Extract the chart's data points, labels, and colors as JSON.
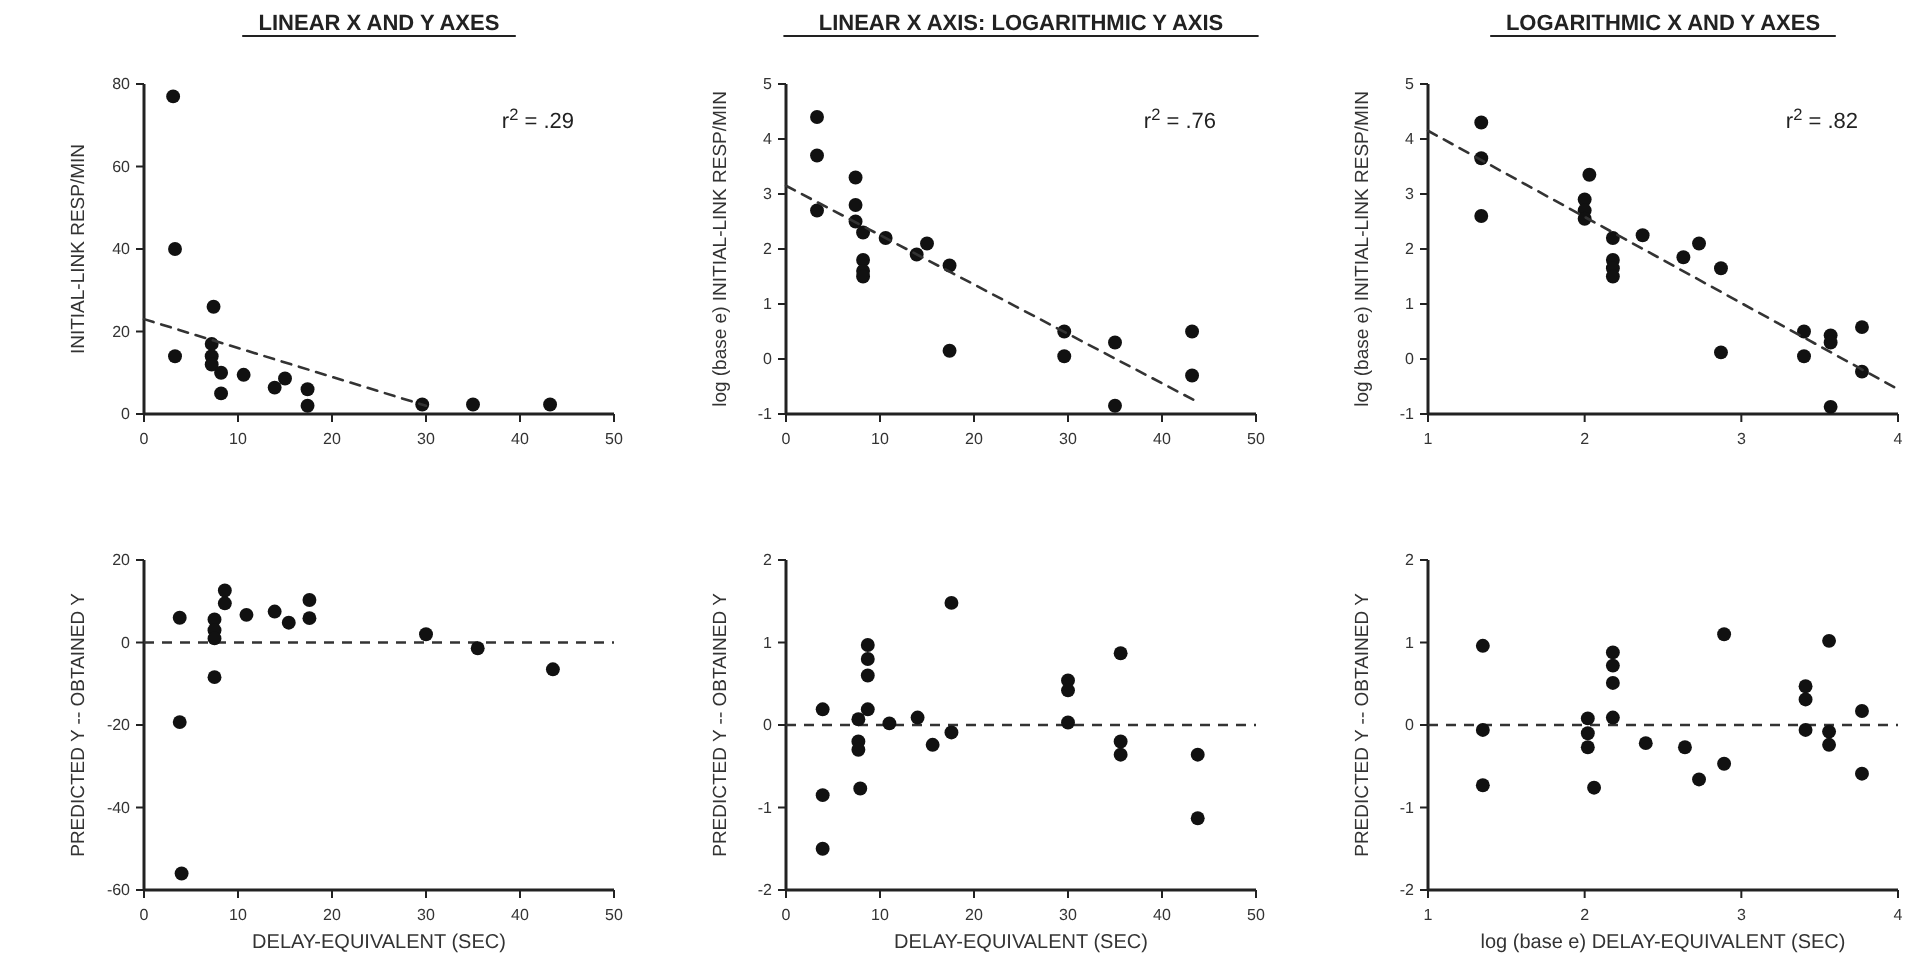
{
  "chart_data": [
    {
      "type": "scatter",
      "title": "LINEAR X AND Y AXES",
      "ylabel": "INITIAL-LINK RESP/MIN",
      "annotations": [
        "r$^{2}$ = .29"
      ],
      "xlim": [
        0,
        50
      ],
      "xticks": [
        0,
        10,
        20,
        30,
        40,
        50
      ],
      "ylim": [
        0,
        80
      ],
      "yticks": [
        0,
        20,
        40,
        60,
        80
      ],
      "marker": "circle",
      "series": [
        {
          "type": "scatter",
          "color": "#111111",
          "x": [
            3.1,
            3.3,
            3.3,
            7.4,
            7.2,
            7.2,
            7.2,
            8.2,
            8.2,
            10.6,
            13.9,
            15,
            17.4,
            17.4,
            29.6,
            35,
            43.2
          ],
          "values": [
            77,
            40,
            14,
            26,
            17,
            14,
            12,
            10,
            5,
            9.5,
            6.4,
            8.6,
            6,
            2,
            2.3,
            2.3,
            2.3
          ]
        },
        {
          "type": "line",
          "marker": "none",
          "color": "#333333",
          "line_style": "dashed",
          "x": [
            0,
            30
          ],
          "values": [
            23,
            2
          ]
        }
      ]
    },
    {
      "type": "scatter",
      "title": "LINEAR X AXIS: LOGARITHMIC Y AXIS",
      "ylabel": "log (base e) INITIAL-LINK RESP/MIN",
      "annotations": [
        "r$^{2}$ = .76"
      ],
      "xlim": [
        0,
        50
      ],
      "xticks": [
        0,
        10,
        20,
        30,
        40,
        50
      ],
      "ylim": [
        -1,
        5
      ],
      "yticks": [
        -1,
        0,
        1,
        2,
        3,
        4,
        5
      ],
      "marker": "circle",
      "series": [
        {
          "type": "scatter",
          "color": "#111111",
          "x": [
            3.3,
            3.3,
            3.3,
            7.4,
            7.4,
            7.4,
            8.2,
            8.2,
            8.2,
            8.2,
            10.6,
            13.9,
            15,
            17.4,
            17.4,
            29.6,
            29.6,
            35,
            35,
            43.2,
            43.2
          ],
          "values": [
            4.4,
            3.7,
            2.7,
            3.3,
            2.8,
            2.5,
            2.3,
            1.8,
            1.6,
            1.5,
            2.2,
            1.9,
            2.1,
            1.7,
            0.15,
            0.5,
            0.05,
            0.3,
            -0.85,
            0.5,
            -0.3
          ]
        },
        {
          "type": "line",
          "marker": "none",
          "color": "#333333",
          "line_style": "dashed",
          "x": [
            0,
            44
          ],
          "values": [
            3.15,
            -0.8
          ]
        }
      ]
    },
    {
      "type": "scatter",
      "title": "LOGARITHMIC X AND Y AXES",
      "ylabel": "log (base e) INITIAL-LINK RESP/MIN",
      "annotations": [
        "r$^{2}$ = .82"
      ],
      "xlim": [
        1,
        4
      ],
      "xticks": [
        1,
        2,
        3,
        4
      ],
      "ylim": [
        -1,
        5
      ],
      "yticks": [
        -1,
        0,
        1,
        2,
        3,
        4,
        5
      ],
      "marker": "circle",
      "series": [
        {
          "type": "scatter",
          "color": "#111111",
          "x": [
            1.34,
            1.34,
            1.34,
            2.03,
            2,
            2,
            2,
            2.18,
            2.18,
            2.18,
            2.18,
            2.37,
            2.63,
            2.73,
            2.87,
            2.87,
            3.4,
            3.4,
            3.57,
            3.57,
            3.57,
            3.77,
            3.77
          ],
          "values": [
            4.3,
            3.65,
            2.6,
            3.35,
            2.9,
            2.7,
            2.55,
            2.2,
            1.8,
            1.65,
            1.5,
            2.25,
            1.85,
            2.1,
            1.65,
            0.12,
            0.5,
            0.05,
            0.43,
            0.3,
            -0.87,
            0.58,
            -0.23
          ]
        },
        {
          "type": "line",
          "marker": "none",
          "color": "#333333",
          "line_style": "dashed",
          "x": [
            1,
            4
          ],
          "values": [
            4.15,
            -0.55
          ]
        }
      ]
    },
    {
      "type": "scatter",
      "xlabel": "DELAY-EQUIVALENT  (SEC)",
      "ylabel": "PREDICTED Y -- OBTAINED Y",
      "xlim": [
        0,
        50
      ],
      "xticks": [
        0,
        10,
        20,
        30,
        40,
        50
      ],
      "ylim": [
        -60,
        20
      ],
      "yticks": [
        -60,
        -40,
        -20,
        0,
        20
      ],
      "marker": "circle",
      "ref_lines": [
        {
          "axis": "y",
          "value": 0,
          "line_style": "dashed",
          "color": "#333333"
        }
      ],
      "series": [
        {
          "type": "scatter",
          "color": "#111111",
          "x": [
            3.8,
            3.8,
            4,
            7.5,
            7.5,
            7.5,
            7.5,
            8.6,
            8.6,
            10.9,
            13.9,
            15.4,
            17.6,
            17.6,
            30,
            35.5,
            43.5
          ],
          "values": [
            6,
            -19.3,
            -56,
            -8.4,
            5.6,
            3,
            1,
            12.6,
            9.5,
            6.7,
            7.5,
            4.8,
            10.3,
            5.9,
            2,
            -1.4,
            -6.5
          ]
        }
      ]
    },
    {
      "type": "scatter",
      "xlabel": "DELAY-EQUIVALENT  (SEC)",
      "ylabel": "PREDICTED Y -- OBTAINED Y",
      "xlim": [
        0,
        50
      ],
      "xticks": [
        0,
        10,
        20,
        30,
        40,
        50
      ],
      "ylim": [
        -2,
        2
      ],
      "yticks": [
        -2,
        -1,
        0,
        1,
        2
      ],
      "marker": "circle",
      "ref_lines": [
        {
          "axis": "y",
          "value": 0,
          "line_style": "dashed",
          "color": "#333333"
        }
      ],
      "series": [
        {
          "type": "scatter",
          "color": "#111111",
          "x": [
            3.9,
            3.9,
            3.9,
            7.7,
            7.7,
            7.7,
            7.9,
            8.7,
            8.7,
            8.7,
            8.7,
            11,
            14,
            15.6,
            17.6,
            17.6,
            30,
            30,
            30,
            35.6,
            35.6,
            35.6,
            43.8,
            43.8
          ],
          "values": [
            0.19,
            -0.85,
            -1.5,
            0.07,
            -0.2,
            -0.3,
            -0.77,
            0.97,
            0.8,
            0.6,
            0.19,
            0.02,
            0.09,
            -0.24,
            1.48,
            -0.09,
            0.54,
            0.42,
            0.03,
            0.87,
            -0.2,
            -0.36,
            -0.36,
            -1.13
          ]
        }
      ]
    },
    {
      "type": "scatter",
      "xlabel": "log (base e) DELAY-EQUIVALENT  (SEC)",
      "ylabel": "PREDICTED Y -- OBTAINED Y",
      "xlim": [
        1,
        4
      ],
      "xticks": [
        1,
        2,
        3,
        4
      ],
      "ylim": [
        -2,
        2
      ],
      "yticks": [
        -2,
        -1,
        0,
        1,
        2
      ],
      "marker": "circle",
      "ref_lines": [
        {
          "axis": "y",
          "value": 0,
          "line_style": "dashed",
          "color": "#333333"
        }
      ],
      "series": [
        {
          "type": "scatter",
          "color": "#111111",
          "x": [
            1.35,
            1.35,
            1.35,
            2.02,
            2.02,
            2.02,
            2.06,
            2.18,
            2.18,
            2.18,
            2.18,
            2.39,
            2.64,
            2.73,
            2.89,
            2.89,
            3.41,
            3.41,
            3.41,
            3.56,
            3.56,
            3.56,
            3.77,
            3.77
          ],
          "values": [
            0.96,
            -0.06,
            -0.73,
            0.08,
            -0.1,
            -0.27,
            -0.76,
            0.88,
            0.72,
            0.51,
            0.09,
            -0.22,
            -0.27,
            -0.66,
            1.1,
            -0.47,
            0.47,
            0.31,
            -0.06,
            1.02,
            -0.08,
            -0.24,
            0.17,
            -0.59
          ]
        }
      ]
    }
  ]
}
